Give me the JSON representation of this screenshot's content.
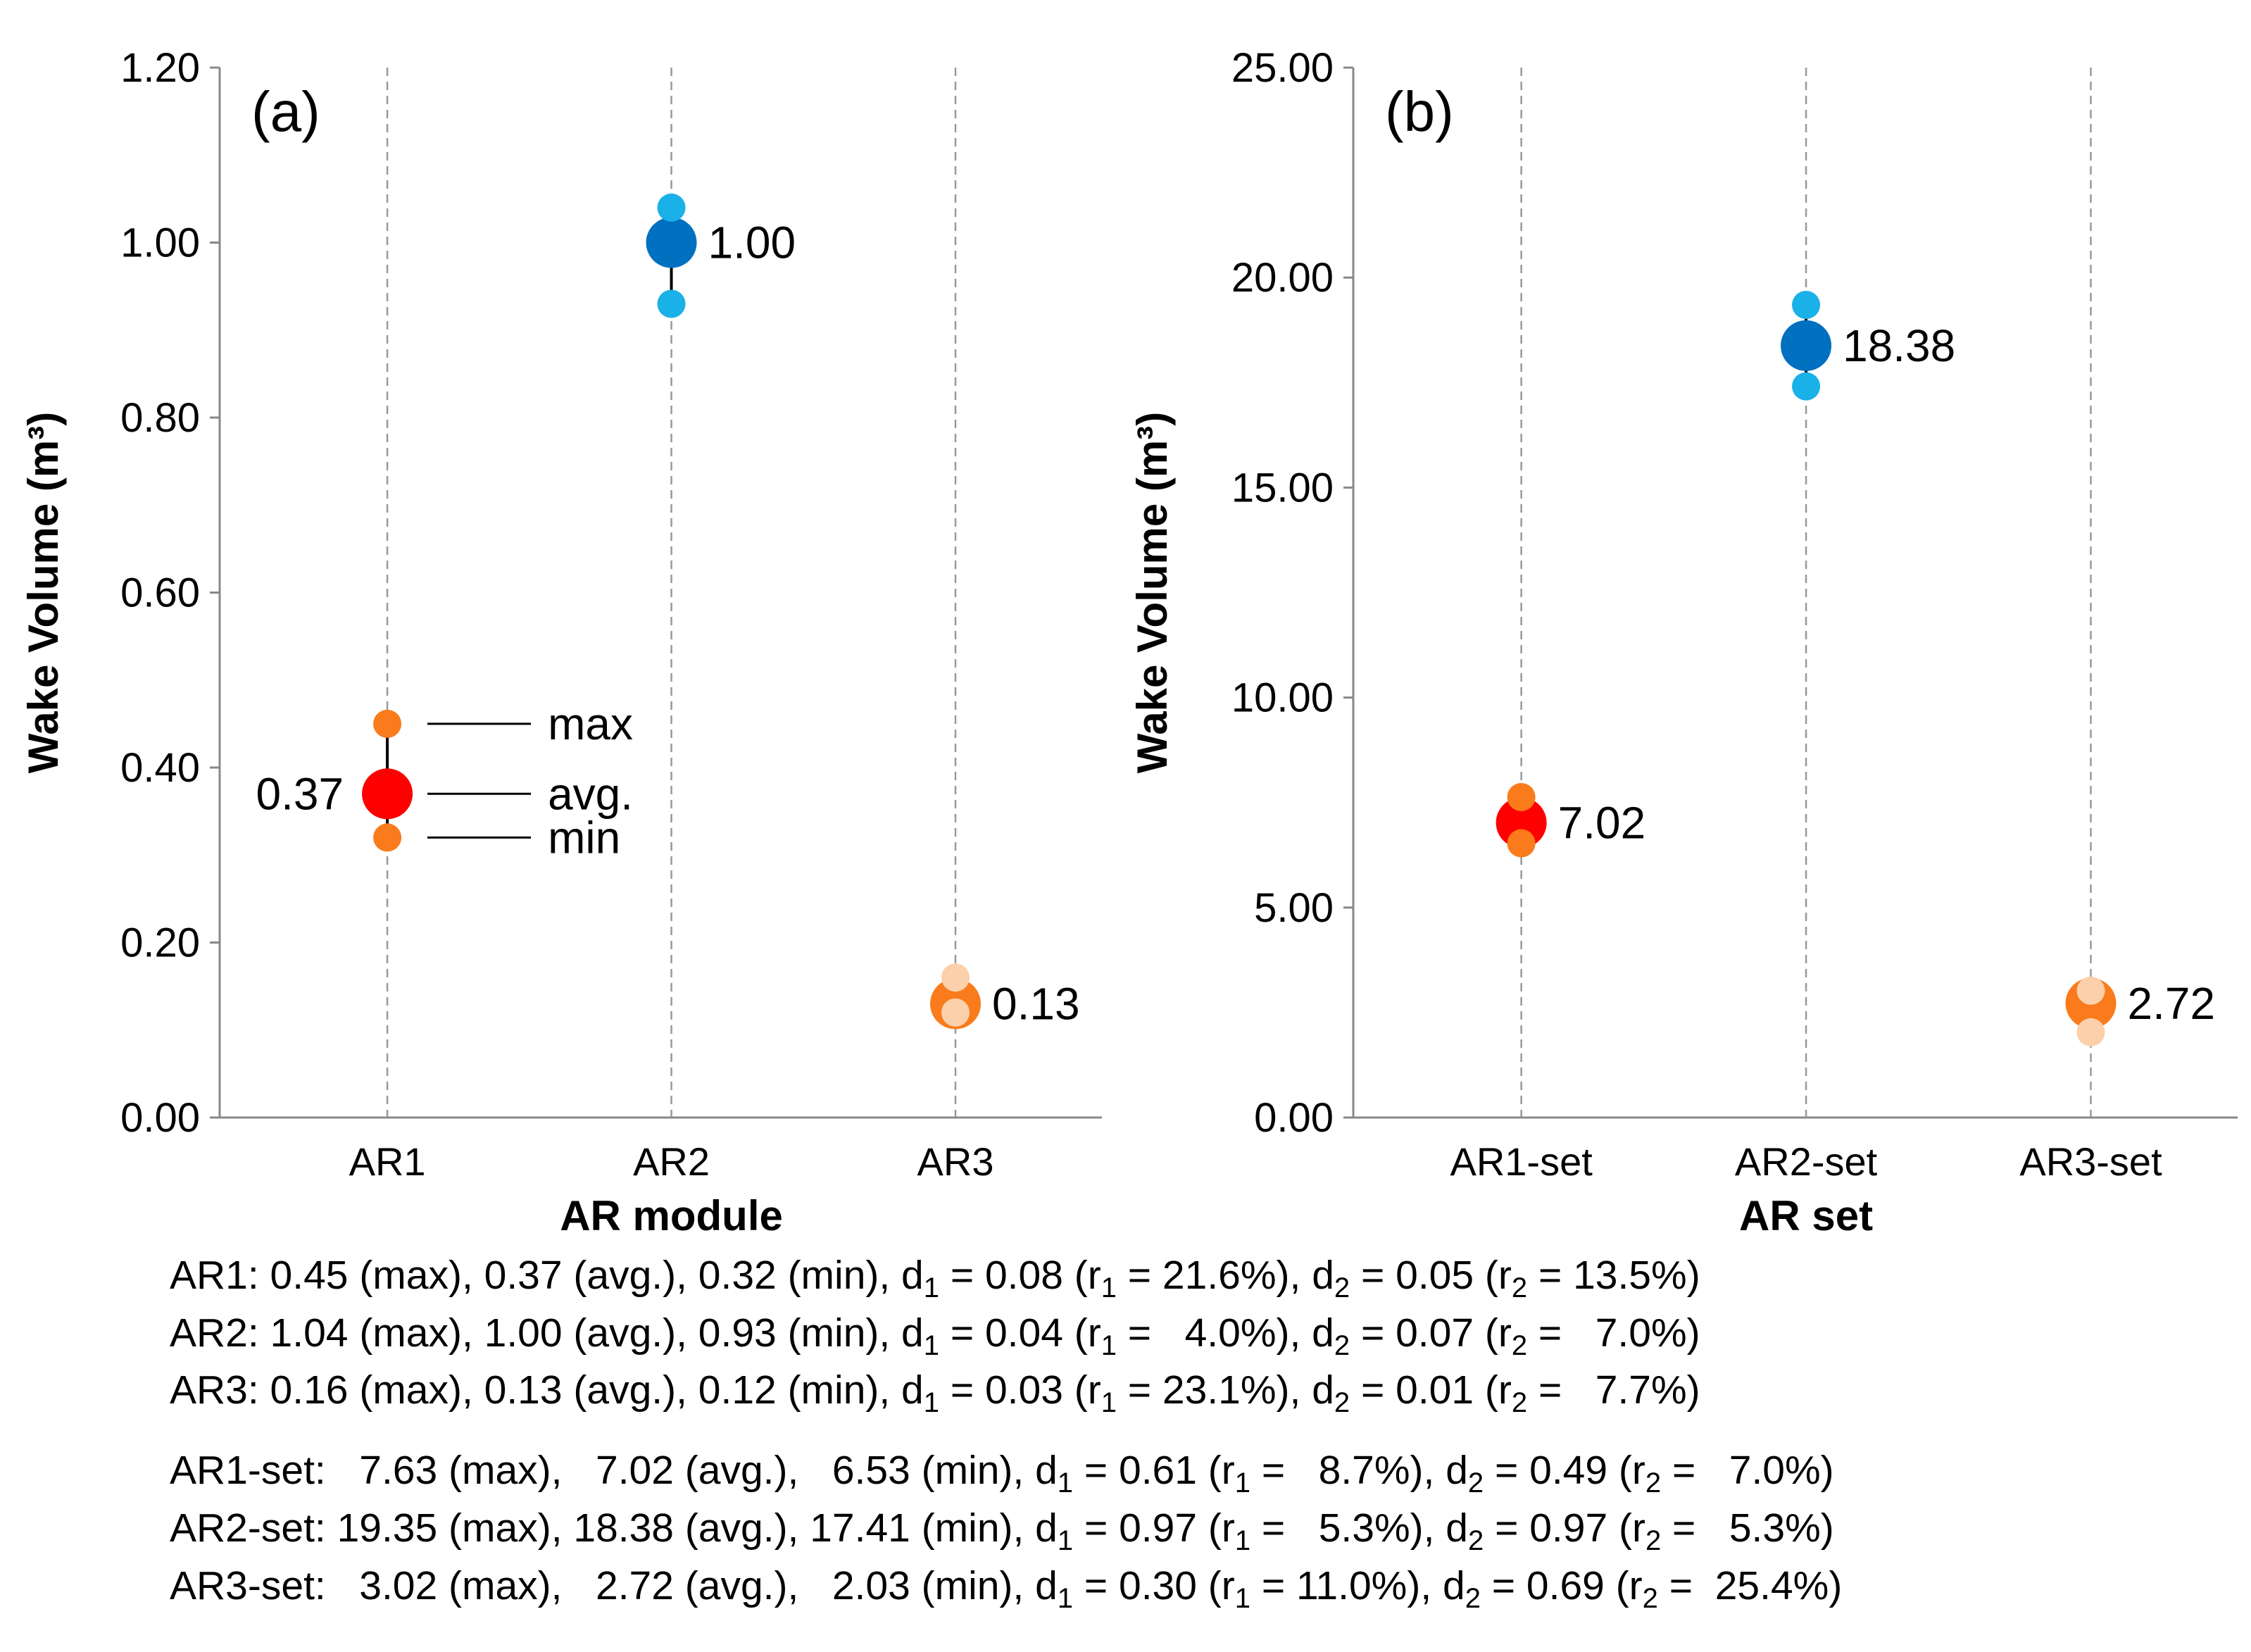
{
  "chart_data": [
    {
      "type": "dot",
      "panel": "(a)",
      "x_label": "AR module",
      "y_label": "Wake Volume (m³)",
      "categories": [
        "AR1",
        "AR2",
        "AR3"
      ],
      "series": [
        {
          "name": "max",
          "colors": [
            "#f97b1c",
            "#1ab0e8",
            "#fbd0ab"
          ],
          "values": [
            0.45,
            1.04,
            0.16
          ]
        },
        {
          "name": "avg.",
          "colors": [
            "#ff0000",
            "#0070c0",
            "#f97b1c"
          ],
          "values": [
            0.37,
            1.0,
            0.13
          ],
          "value_labels": [
            "0.37",
            "1.00",
            "0.13"
          ]
        },
        {
          "name": "min",
          "colors": [
            "#f97b1c",
            "#1ab0e8",
            "#fbd0ab"
          ],
          "values": [
            0.32,
            0.93,
            0.12
          ]
        }
      ],
      "ylim": [
        0,
        1.2
      ],
      "yticks": [
        {
          "value": 0,
          "label": "0.00"
        },
        {
          "value": 0.2,
          "label": "0.20"
        },
        {
          "value": 0.4,
          "label": "0.40"
        },
        {
          "value": 0.6,
          "label": "0.60"
        },
        {
          "value": 0.8,
          "label": "0.80"
        },
        {
          "value": 1.0,
          "label": "1.00"
        },
        {
          "value": 1.2,
          "label": "1.20"
        }
      ],
      "grid": true,
      "legend": true
    },
    {
      "type": "dot",
      "panel": "(b)",
      "x_label": "AR set",
      "y_label": "Wake Volume (m³)",
      "categories": [
        "AR1-set",
        "AR2-set",
        "AR3-set"
      ],
      "series": [
        {
          "name": "max",
          "colors": [
            "#f97b1c",
            "#1ab0e8",
            "#fbd0ab"
          ],
          "values": [
            7.63,
            19.35,
            3.02
          ]
        },
        {
          "name": "avg.",
          "colors": [
            "#ff0000",
            "#0070c0",
            "#f97b1c"
          ],
          "values": [
            7.02,
            18.38,
            2.72
          ]
        },
        {
          "name": "min",
          "colors": [
            "#f97b1c",
            "#1ab0e8",
            "#fbd0ab"
          ],
          "values": [
            6.53,
            17.41,
            2.03
          ]
        }
      ],
      "ylim": [
        0,
        25
      ],
      "yticks": [
        {
          "value": 0,
          "label": "0.00"
        },
        {
          "value": 5,
          "label": "5.00"
        },
        {
          "value": 10,
          "label": "10.00"
        },
        {
          "value": 15,
          "label": "15.00"
        },
        {
          "value": 20,
          "label": "20.00"
        },
        {
          "value": 25,
          "label": "25.00"
        }
      ],
      "grid": true,
      "legend": false
    }
  ],
  "notes": [
    [
      "AR1: 0.45 (max), 0.37 (avg.), 0.32 (min), d",
      "1",
      " = 0.08 (r",
      "1",
      " = 21.6%), d",
      "2",
      " = 0.05 (r",
      "2",
      " = 13.5%)"
    ],
    [
      "AR2: 1.04 (max), 1.00 (avg.), 0.93 (min), d",
      "1",
      " = 0.04 (r",
      "1",
      " =   4.0%), d",
      "2",
      " = 0.07 (r",
      "2",
      " =   7.0%)"
    ],
    [
      "AR3: 0.16 (max), 0.13 (avg.), 0.12 (min), d",
      "1",
      " = 0.03 (r",
      "1",
      " = 23.1%), d",
      "2",
      " = 0.01 (r",
      "2",
      " =   7.7%)"
    ],
    [
      "AR1-set:   7.63 (max),   7.02 (avg.),   6.53 (min), d",
      "1",
      " = 0.61 (r",
      "1",
      " =   8.7%), d",
      "2",
      " = 0.49 (r",
      "2",
      " =   7.0%)"
    ],
    [
      "AR2-set: 19.35 (max), 18.38 (avg.), 17.41 (min), d",
      "1",
      " = 0.97 (r",
      "1",
      " =   5.3%), d",
      "2",
      " = 0.97 (r",
      "2",
      " =   5.3%)"
    ],
    [
      "AR3-set:   3.02 (max),   2.72 (avg.),   2.03 (min), d",
      "1",
      " = 0.30 (r",
      "1",
      " = 11.0%), d",
      "2",
      " = 0.69 (r",
      "2",
      " =  25.4%)"
    ]
  ]
}
